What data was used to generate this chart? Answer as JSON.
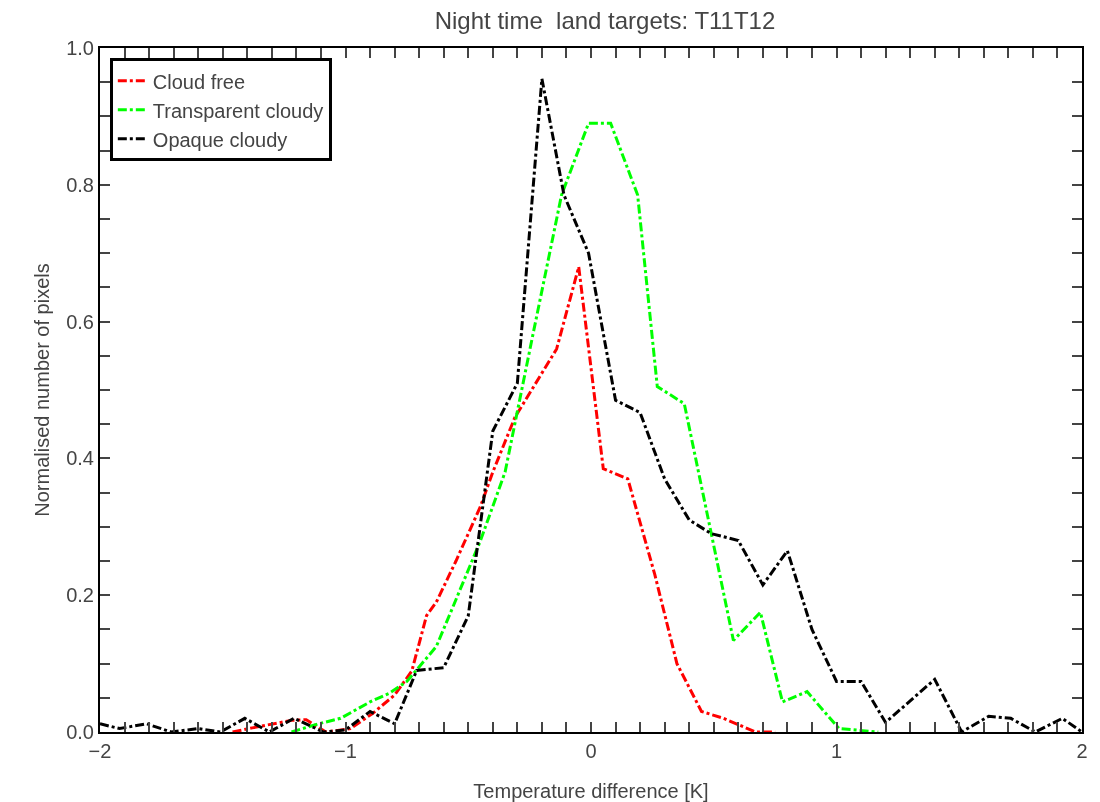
{
  "chart_data": {
    "type": "line",
    "title": "Night time  land targets: T11T12",
    "xlabel": "Temperature difference [K]",
    "ylabel": "Normalised number of pixels",
    "xlim": [
      -2,
      2
    ],
    "ylim": [
      0,
      1
    ],
    "xticks": [
      {
        "value": -2,
        "label": "−2"
      },
      {
        "value": -1.9,
        "label": null
      },
      {
        "value": -1.8,
        "label": null
      },
      {
        "value": -1.7,
        "label": null
      },
      {
        "value": -1.6,
        "label": null
      },
      {
        "value": -1.5,
        "label": null
      },
      {
        "value": -1.4,
        "label": null
      },
      {
        "value": -1.3,
        "label": null
      },
      {
        "value": -1.2,
        "label": null
      },
      {
        "value": -1.1,
        "label": null
      },
      {
        "value": -1,
        "label": "−1"
      },
      {
        "value": -0.9,
        "label": null
      },
      {
        "value": -0.8,
        "label": null
      },
      {
        "value": -0.7,
        "label": null
      },
      {
        "value": -0.6,
        "label": null
      },
      {
        "value": -0.5,
        "label": null
      },
      {
        "value": -0.4,
        "label": null
      },
      {
        "value": -0.3,
        "label": null
      },
      {
        "value": -0.2,
        "label": null
      },
      {
        "value": -0.1,
        "label": null
      },
      0,
      {
        "value": 0.1,
        "label": null
      },
      {
        "value": 0.2,
        "label": null
      },
      {
        "value": 0.3,
        "label": null
      },
      {
        "value": 0.4,
        "label": null
      },
      {
        "value": 0.5,
        "label": null
      },
      {
        "value": 0.6,
        "label": null
      },
      {
        "value": 0.7,
        "label": null
      },
      {
        "value": 0.8,
        "label": null
      },
      {
        "value": 0.9,
        "label": null
      },
      1,
      {
        "value": 1.1,
        "label": null
      },
      {
        "value": 1.2,
        "label": null
      },
      {
        "value": 1.3,
        "label": null
      },
      {
        "value": 1.4,
        "label": null
      },
      {
        "value": 1.5,
        "label": null
      },
      {
        "value": 1.6,
        "label": null
      },
      {
        "value": 1.7,
        "label": null
      },
      {
        "value": 1.8,
        "label": null
      },
      {
        "value": 1.9,
        "label": null
      },
      2
    ],
    "yticks": [
      {
        "value": 0,
        "label": "0.0"
      },
      {
        "value": 0.05,
        "label": null
      },
      {
        "value": 0.1,
        "label": null
      },
      {
        "value": 0.15,
        "label": null
      },
      {
        "value": 0.2,
        "label": "0.2"
      },
      {
        "value": 0.25,
        "label": null
      },
      {
        "value": 0.3,
        "label": null
      },
      {
        "value": 0.35,
        "label": null
      },
      {
        "value": 0.4,
        "label": "0.4"
      },
      {
        "value": 0.45,
        "label": null
      },
      {
        "value": 0.5,
        "label": null
      },
      {
        "value": 0.55,
        "label": null
      },
      {
        "value": 0.6,
        "label": "0.6"
      },
      {
        "value": 0.65,
        "label": null
      },
      {
        "value": 0.7,
        "label": null
      },
      {
        "value": 0.75,
        "label": null
      },
      {
        "value": 0.8,
        "label": "0.8"
      },
      {
        "value": 0.85,
        "label": null
      },
      {
        "value": 0.9,
        "label": null
      },
      {
        "value": 0.95,
        "label": null
      },
      {
        "value": 1,
        "label": "1.0"
      }
    ],
    "grid": false,
    "legend": "top left",
    "marker": "none",
    "line_style": "dashdot",
    "series": [
      {
        "name": "Cloud free",
        "color": "#ff0000",
        "x": [
          -1.46,
          -1.38,
          -1.22,
          -1.16,
          -1.08,
          -0.98,
          -0.89,
          -0.8,
          -0.73,
          -0.67,
          -0.63,
          -0.55,
          -0.45,
          -0.4,
          -0.31,
          -0.14,
          -0.05,
          0.05,
          0.15,
          0.26,
          0.35,
          0.45,
          0.54,
          0.67,
          0.75
        ],
        "values": [
          0,
          0.006,
          0.017,
          0.018,
          0,
          0.005,
          0.027,
          0.054,
          0.089,
          0.17,
          0.19,
          0.25,
          0.33,
          0.38,
          0.46,
          0.56,
          0.68,
          0.385,
          0.37,
          0.23,
          0.1,
          0.03,
          0.02,
          0,
          0
        ]
      },
      {
        "name": "Transparent cloudy",
        "color": "#00ff00",
        "x": [
          -1.22,
          -1.11,
          -1.02,
          -0.9,
          -0.82,
          -0.75,
          -0.63,
          -0.56,
          -0.45,
          -0.35,
          -0.24,
          -0.12,
          -0.01,
          0.08,
          0.19,
          0.27,
          0.38,
          0.49,
          0.58,
          0.69,
          0.78,
          0.88,
          1.01,
          1.17
        ],
        "values": [
          0,
          0.012,
          0.02,
          0.044,
          0.057,
          0.074,
          0.125,
          0.185,
          0.28,
          0.38,
          0.575,
          0.785,
          0.89,
          0.89,
          0.785,
          0.505,
          0.48,
          0.29,
          0.134,
          0.175,
          0.044,
          0.059,
          0.005,
          0
        ]
      },
      {
        "name": "Opaque cloudy",
        "color": "#000000",
        "x": [
          -2,
          -1.92,
          -1.81,
          -1.71,
          -1.6,
          -1.51,
          -1.41,
          -1.31,
          -1.21,
          -1.09,
          -1,
          -0.9,
          -0.8,
          -0.71,
          -0.6,
          -0.5,
          -0.4,
          -0.3,
          -0.2,
          -0.11,
          -0.01,
          0.1,
          0.2,
          0.3,
          0.4,
          0.49,
          0.6,
          0.7,
          0.8,
          0.9,
          1,
          1.1,
          1.2,
          1.4,
          1.51,
          1.62,
          1.71,
          1.81,
          1.92,
          2
        ],
        "values": [
          0.012,
          0.005,
          0.012,
          0,
          0.005,
          0,
          0.02,
          0,
          0.02,
          0,
          0.003,
          0.03,
          0.012,
          0.09,
          0.094,
          0.17,
          0.44,
          0.51,
          0.955,
          0.785,
          0.7,
          0.485,
          0.467,
          0.37,
          0.31,
          0.29,
          0.28,
          0.215,
          0.265,
          0.15,
          0.074,
          0.074,
          0.014,
          0.077,
          0,
          0.023,
          0.02,
          0,
          0.02,
          0
        ]
      }
    ]
  }
}
